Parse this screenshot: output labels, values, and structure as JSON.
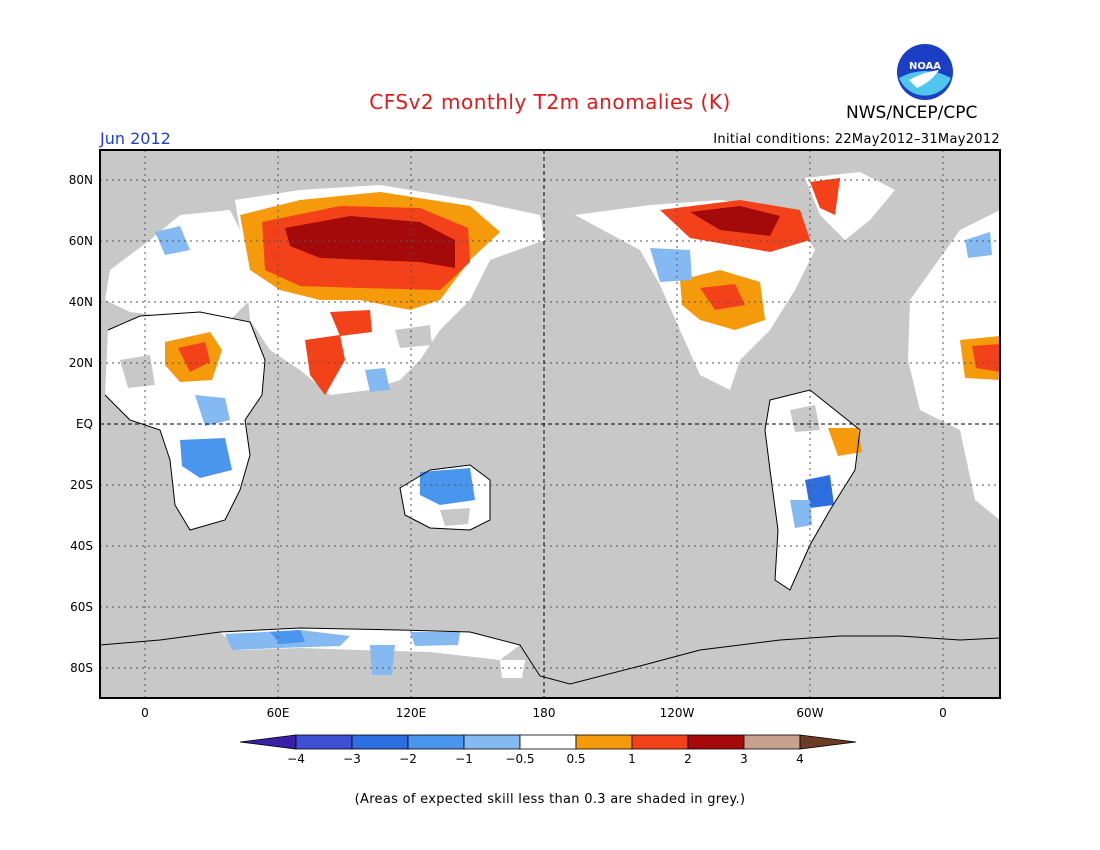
{
  "title": "CFSv2 monthly T2m anomalies (K)",
  "organization": "NWS/NCEP/CPC",
  "logo_text": "NOAA",
  "month": "Jun 2012",
  "initial_conditions": "Initial conditions: 22May2012–31May2012",
  "note": "(Areas of expected skill less than 0.3 are shaded in grey.)",
  "lat_labels": [
    "80N",
    "60N",
    "40N",
    "20N",
    "EQ",
    "20S",
    "40S",
    "60S",
    "80S"
  ],
  "lon_labels": [
    "0",
    "60E",
    "120E",
    "180",
    "120W",
    "60W",
    "0"
  ],
  "colorbar": {
    "labels": [
      "−4",
      "−3",
      "−2",
      "−1",
      "−0.5",
      "0.5",
      "1",
      "2",
      "3",
      "4"
    ],
    "colors": [
      "#3a1fa8",
      "#3d4fd4",
      "#2d6fe0",
      "#4a96ee",
      "#84b9f2",
      "#ffffff",
      "#f59a0a",
      "#f3421a",
      "#a40a0a",
      "#c7a08e",
      "#6b3b25"
    ]
  },
  "legend_colors": {
    "grey_low_skill": "#c8c8c8",
    "ocean_mask": "#c8c8c8"
  }
}
